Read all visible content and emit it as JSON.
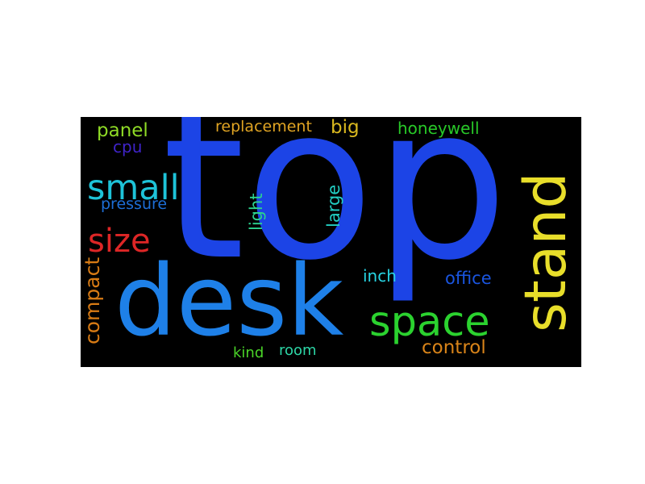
{
  "word_cloud": {
    "background": "#000000",
    "words": [
      {
        "text": "top",
        "color": "#1c44e6"
      },
      {
        "text": "desk",
        "color": "#1e80e8"
      },
      {
        "text": "stand",
        "color": "#e8de2a"
      },
      {
        "text": "space",
        "color": "#2bd22f"
      },
      {
        "text": "small",
        "color": "#1ec3d8"
      },
      {
        "text": "size",
        "color": "#dd2626"
      },
      {
        "text": "panel",
        "color": "#8fdb26"
      },
      {
        "text": "cpu",
        "color": "#3f24c9"
      },
      {
        "text": "pressure",
        "color": "#1d6ed6"
      },
      {
        "text": "compact",
        "color": "#d87b14"
      },
      {
        "text": "replacement",
        "color": "#e0a423"
      },
      {
        "text": "big",
        "color": "#d9b81f"
      },
      {
        "text": "honeywell",
        "color": "#28c928"
      },
      {
        "text": "light",
        "color": "#2bd38f"
      },
      {
        "text": "large",
        "color": "#22cfc3"
      },
      {
        "text": "inch",
        "color": "#27d4e3"
      },
      {
        "text": "office",
        "color": "#1a55e0"
      },
      {
        "text": "control",
        "color": "#d98419"
      },
      {
        "text": "kind",
        "color": "#4ad428"
      },
      {
        "text": "room",
        "color": "#2dd6a6"
      }
    ]
  }
}
